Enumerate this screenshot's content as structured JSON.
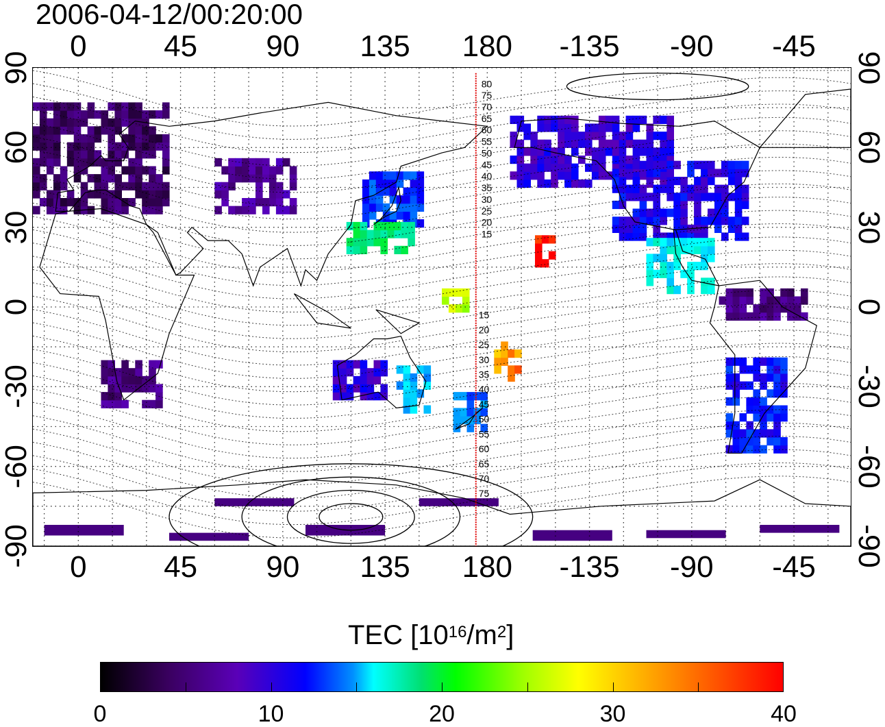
{
  "title": "2006-04-12/00:20:00",
  "lon_ticks": [
    "0",
    "45",
    "90",
    "135",
    "180",
    "-135",
    "-90",
    "-45"
  ],
  "lat_ticks": [
    "90",
    "60",
    "30",
    "0",
    "-30",
    "-60",
    "-90"
  ],
  "magnetic_lat_labels_north": [
    "80",
    "75",
    "70",
    "65",
    "60",
    "55",
    "50",
    "45",
    "40",
    "35",
    "30",
    "25",
    "20",
    "15"
  ],
  "magnetic_lat_labels_south": [
    "15",
    "20",
    "25",
    "30",
    "35",
    "40",
    "45",
    "50",
    "55",
    "60",
    "65",
    "70",
    "75"
  ],
  "colorbar": {
    "label_prefix": "TEC  [10",
    "label_exp": "16",
    "label_unit": "/m",
    "label_unit_exp": "2",
    "label_suffix": "]",
    "ticks": [
      "0",
      "10",
      "20",
      "30",
      "40"
    ],
    "min": 0,
    "max": 40
  },
  "colors": {
    "meridian_line": "#e00000",
    "grid": "#000000",
    "scale": [
      "#000000",
      "#3a0060",
      "#5a00b8",
      "#0000ff",
      "#0090ff",
      "#00ffff",
      "#00e070",
      "#00ff00",
      "#a0ff00",
      "#ffff00",
      "#ff8000",
      "#ff0000"
    ]
  },
  "chart_data": {
    "type": "heatmap",
    "title": "2006-04-12/00:20:00",
    "x_axis": {
      "label": "",
      "ticks": [
        "0",
        "45",
        "90",
        "135",
        "180",
        "-135",
        "-90",
        "-45"
      ],
      "range": [
        -20,
        340
      ]
    },
    "y_axis": {
      "label": "",
      "ticks": [
        "90",
        "60",
        "30",
        "0",
        "-30",
        "-60",
        "-90"
      ],
      "range": [
        -90,
        90
      ]
    },
    "colorbar_label": "TEC [10^16/m^2]",
    "colorbar_range": [
      0,
      40
    ],
    "marked_meridian_lon": 175,
    "regions": [
      {
        "lon": [
          -20,
          40
        ],
        "lat": [
          35,
          75
        ],
        "tec": 4
      },
      {
        "lon": [
          10,
          35
        ],
        "lat": [
          -38,
          -22
        ],
        "tec": 5
      },
      {
        "lon": [
          60,
          95
        ],
        "lat": [
          35,
          55
        ],
        "tec": 6
      },
      {
        "lon": [
          125,
          150
        ],
        "lat": [
          30,
          50
        ],
        "tec": 12
      },
      {
        "lon": [
          118,
          148
        ],
        "lat": [
          20,
          30
        ],
        "tec": 22
      },
      {
        "lon": [
          160,
          172
        ],
        "lat": [
          -2,
          5
        ],
        "tec": 30
      },
      {
        "lon": [
          165,
          180
        ],
        "lat": [
          -47,
          -33
        ],
        "tec": 14
      },
      {
        "lon": [
          140,
          155
        ],
        "lat": [
          -40,
          -22
        ],
        "tec": 16
      },
      {
        "lon": [
          112,
          135
        ],
        "lat": [
          -35,
          -20
        ],
        "tec": 9
      },
      {
        "lon": [
          183,
          195
        ],
        "lat": [
          -28,
          -15
        ],
        "tec": 36
      },
      {
        "lon": [
          198,
          210
        ],
        "lat": [
          15,
          25
        ],
        "tec": 40
      },
      {
        "lon": [
          190,
          260
        ],
        "lat": [
          45,
          70
        ],
        "tec": 9
      },
      {
        "lon": [
          235,
          295
        ],
        "lat": [
          25,
          55
        ],
        "tec": 10
      },
      {
        "lon": [
          250,
          280
        ],
        "lat": [
          5,
          25
        ],
        "tec": 18
      },
      {
        "lon": [
          282,
          320
        ],
        "lat": [
          -5,
          5
        ],
        "tec": 5
      },
      {
        "lon": [
          285,
          310
        ],
        "lat": [
          -55,
          -20
        ],
        "tec": 11
      }
    ]
  }
}
